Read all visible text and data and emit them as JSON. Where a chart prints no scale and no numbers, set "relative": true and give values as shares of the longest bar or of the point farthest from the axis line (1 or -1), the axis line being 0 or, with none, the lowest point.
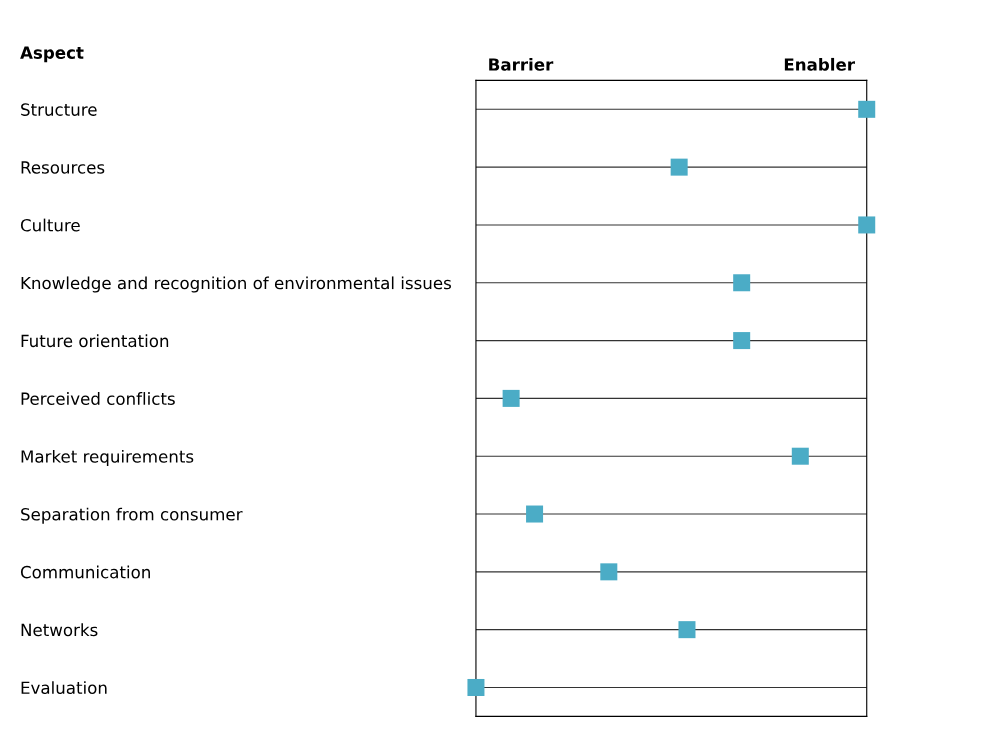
{
  "chart_data": {
    "type": "scatter",
    "orientation": "horizontal",
    "ylabel": "Aspect",
    "relative": true,
    "categories": [
      "Structure",
      "Resources",
      "Culture",
      "Knowledge and recognition of environmental issues",
      "Future orientation",
      "Perceived conflicts",
      "Market requirements",
      "Separation from consumer",
      "Communication",
      "Networks",
      "Evaluation"
    ],
    "values": [
      1,
      0.52,
      1,
      0.68,
      0.68,
      0.09,
      0.83,
      0.15,
      0.34,
      0.54,
      0
    ],
    "color": "#4bacc6",
    "annotations": [
      "Barrier",
      "Enabler"
    ],
    "marker": "square",
    "grid": "y"
  }
}
